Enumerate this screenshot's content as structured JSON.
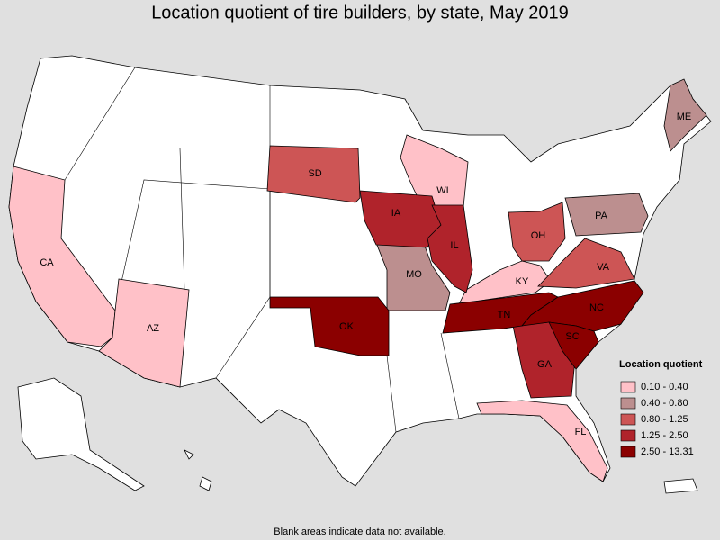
{
  "title": "Location quotient of tire builders, by state, May 2019",
  "legend": {
    "title": "Location quotient",
    "bins": [
      {
        "label": "0.10 - 0.40",
        "color": "#ffc1c8",
        "states": [
          "CA",
          "AZ",
          "WI",
          "KY",
          "FL"
        ]
      },
      {
        "label": "0.40 - 0.80",
        "color": "#bc8f8f",
        "states": [
          "ME",
          "PA",
          "MO"
        ]
      },
      {
        "label": "0.80 - 1.25",
        "color": "#cd5555",
        "states": [
          "SD",
          "OH",
          "VA"
        ]
      },
      {
        "label": "1.25 - 2.50",
        "color": "#b0232b",
        "states": [
          "IA",
          "IL",
          "GA"
        ]
      },
      {
        "label": "2.50 - 13.31",
        "color": "#8b0000",
        "states": [
          "TN",
          "OK",
          "NC",
          "SC"
        ]
      }
    ]
  },
  "note": "Blank areas indicate data not available."
}
